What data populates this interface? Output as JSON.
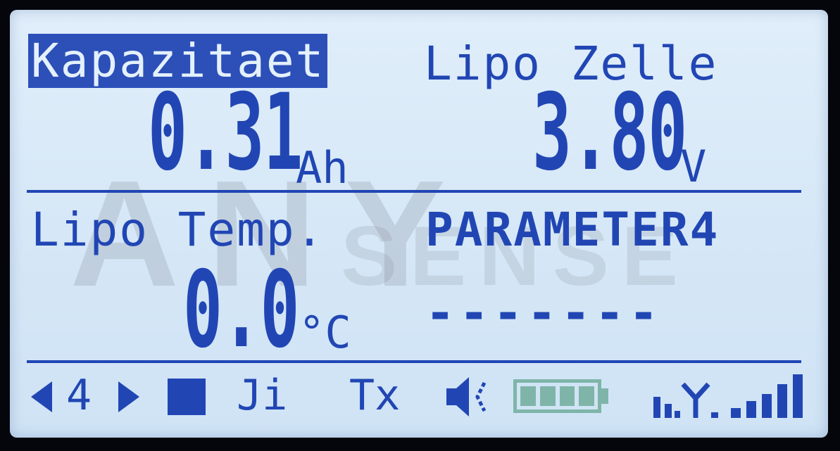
{
  "watermark": {
    "main": "ANY",
    "sub": "SENSE"
  },
  "top_left": {
    "label": "Kapazitaet",
    "value": "0.31",
    "unit": "Ah"
  },
  "top_right": {
    "label": "Lipo Zelle",
    "value": "3.80",
    "unit": "V"
  },
  "bottom_left": {
    "label": "Lipo Temp.",
    "value": "0.0",
    "unit": "°C"
  },
  "bottom_right": {
    "label": "PARAMETER4",
    "value": "-------"
  },
  "status_bar": {
    "page_number": "4",
    "mode_label": "Ji",
    "tx_label": "Tx",
    "battery_level": 1.0,
    "signal_bars": 5,
    "icons": [
      "arrow-left-icon",
      "arrow-right-icon",
      "stop-square-icon",
      "speaker-muted-icon",
      "battery-icon",
      "antenna-icon",
      "signal-bars-icon"
    ]
  },
  "colors": {
    "lcd_text": "#2146b4",
    "lcd_background": "#d7e8f7",
    "battery": "#7fb5a8"
  }
}
